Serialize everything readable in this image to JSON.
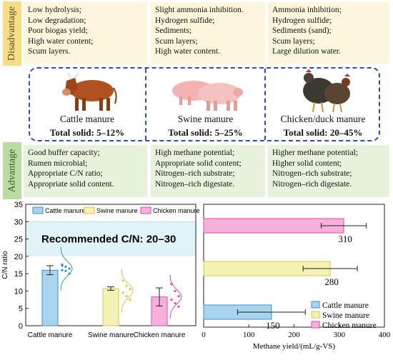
{
  "labels": {
    "disadvantage": "Disadvantage",
    "advantage": "Advantage"
  },
  "manures": [
    {
      "name": "Cattle manure",
      "total_solid": "Total solid: 5–12%",
      "disadvantages": [
        "Low hydrolysis;",
        "Low degradation;",
        "Poor biogas yield;",
        "High water content;",
        "Scum layers."
      ],
      "advantages": [
        "Good buffer capacity;",
        "Rumen microbial;",
        "Appropriate C/N ratio;",
        "Appropriate solid content."
      ]
    },
    {
      "name": "Swine manure",
      "total_solid": "Total solid: 5–25%",
      "disadvantages": [
        "Slight ammonia inhibition.",
        "Hydrogen sulfide;",
        "Sediments;",
        "Scum layers;",
        "High water content."
      ],
      "advantages": [
        "High methane potential;",
        "Appropriate solid content;",
        "Nitrogen–rich substrate;",
        "Nitrogen–rich digestate."
      ]
    },
    {
      "name": "Chicken/duck manure",
      "total_solid": "Total solid: 20–45%",
      "disadvantages": [
        "Ammonia inhibition;",
        "Hydrogen sulfide;",
        "Sediments (sand);",
        "Scum layers;",
        "Large dilution water."
      ],
      "advantages": [
        "Higher methane potential;",
        "Higher solid content;",
        "Nitrogen–rich substrate;",
        "Nitrogen–rich digestate."
      ]
    }
  ],
  "colors": {
    "cattle": "#a8d4ee",
    "swine": "#f5f0b4",
    "chicken": "#f7b0dc",
    "cattle_stroke": "#3b8fd0",
    "swine_stroke": "#d8c84a",
    "chicken_stroke": "#e04aa8",
    "recommended_band": "#e0f3f6"
  },
  "chart_data": [
    {
      "type": "bar",
      "ylabel": "C/N ratio",
      "categories": [
        "Cattle manure",
        "Swine manure",
        "Chicken manure"
      ],
      "legend": [
        "Cattle manure",
        "Swine manure",
        "Chicken manure"
      ],
      "values": [
        16,
        10.7,
        8.3
      ],
      "errors": [
        1.3,
        0.5,
        2.6
      ],
      "ylim": [
        0,
        35
      ],
      "yticks": [
        0,
        5,
        10,
        15,
        20,
        25,
        30,
        35
      ],
      "annotation": "Recommended C/N: 20–30",
      "recommended_range": [
        20,
        30
      ],
      "points": [
        [
          17.3,
          17.0,
          16.5,
          16.0,
          15.8,
          15.0,
          17.6
        ],
        [
          13.0,
          11.5,
          10.5,
          9.5,
          8.5,
          7.5
        ],
        [
          12.0,
          10.0,
          8.5,
          7.5,
          6.5,
          5.5
        ]
      ]
    },
    {
      "type": "bar",
      "orientation": "horizontal",
      "xlabel": "Methane yield/(mL/g-VS)",
      "categories": [
        "Cattle manure",
        "Swine manure",
        "Chicken manure"
      ],
      "legend": [
        "Cattle manure",
        "Swine manure",
        "Chicken manure"
      ],
      "values": [
        150,
        280,
        310
      ],
      "value_labels": [
        "150",
        "280",
        "310"
      ],
      "errors": [
        75,
        60,
        50
      ],
      "xlim": [
        0,
        400
      ],
      "xticks": [
        0,
        100,
        200,
        300,
        400
      ]
    }
  ]
}
